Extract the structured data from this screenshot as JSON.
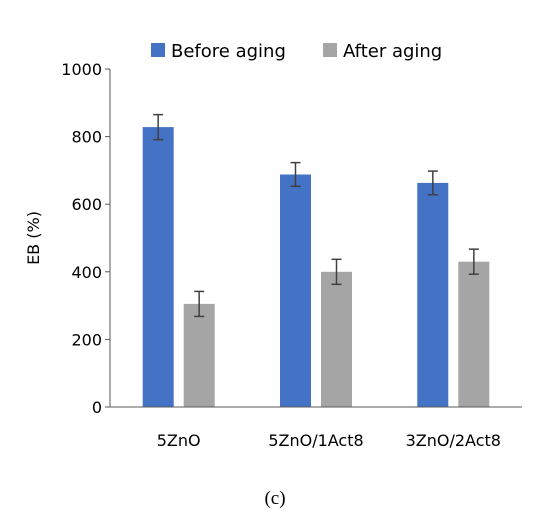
{
  "chart_data": {
    "type": "bar",
    "categories": [
      "5ZnO",
      "5ZnO/1Act8",
      "3ZnO/2Act8"
    ],
    "series": [
      {
        "name": "Before aging",
        "color": "#4472c4",
        "values": [
          828,
          688,
          663
        ],
        "errors": [
          37,
          35,
          35
        ]
      },
      {
        "name": "After aging",
        "color": "#a5a5a5",
        "values": [
          305,
          400,
          430
        ],
        "errors": [
          37,
          37,
          37
        ]
      }
    ],
    "title": "",
    "xlabel": "",
    "ylabel": "EB (%)",
    "ylim": [
      0,
      1000
    ],
    "yticks": [
      0,
      200,
      400,
      600,
      800,
      1000
    ],
    "grid": false,
    "legend": "top"
  },
  "panel_label": "(c)"
}
